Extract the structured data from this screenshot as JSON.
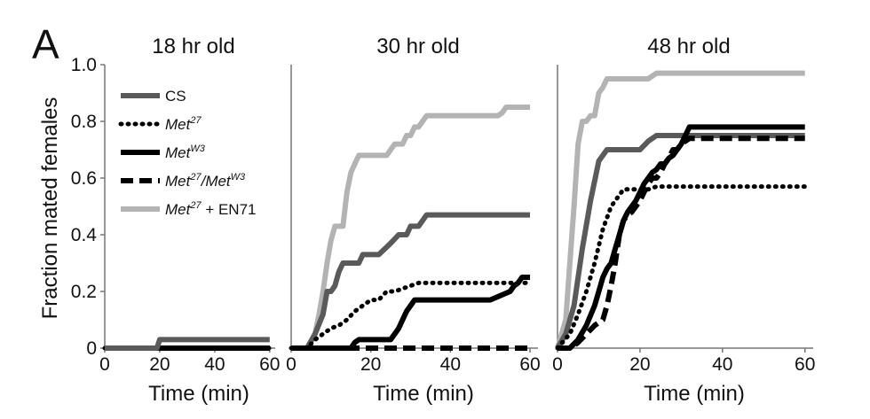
{
  "figure": {
    "panel_letter": "A",
    "ylabel": "Fraction mated females",
    "colors": {
      "CS": "#5a5a5a",
      "Met27": "#000000",
      "MetW3": "#000000",
      "Met27/MetW3": "#000000",
      "Met27 + EN71": "#b3b3b3",
      "axis": "#777777"
    }
  },
  "legend": [
    {
      "key": "CS",
      "parts": [
        {
          "t": "CS",
          "style": "plain"
        }
      ],
      "line": "solid",
      "color": "#5a5a5a"
    },
    {
      "key": "Met27",
      "parts": [
        {
          "t": "Met",
          "style": "italic"
        },
        {
          "t": "27",
          "style": "sup"
        }
      ],
      "line": "dotted",
      "color": "#000000"
    },
    {
      "key": "MetW3",
      "parts": [
        {
          "t": "Met",
          "style": "italic"
        },
        {
          "t": "W3",
          "style": "sup"
        }
      ],
      "line": "solid",
      "color": "#000000"
    },
    {
      "key": "Met27/MetW3",
      "parts": [
        {
          "t": "Met",
          "style": "italic"
        },
        {
          "t": "27",
          "style": "sup"
        },
        {
          "t": "/Met",
          "style": "italic"
        },
        {
          "t": "W3",
          "style": "sup"
        }
      ],
      "line": "dashed",
      "color": "#000000"
    },
    {
      "key": "Met27 + EN71",
      "parts": [
        {
          "t": "Met",
          "style": "italic"
        },
        {
          "t": "27",
          "style": "sup"
        },
        {
          "t": " + EN71",
          "style": "plain"
        }
      ],
      "line": "solid",
      "color": "#b3b3b3"
    }
  ],
  "chart_data": [
    {
      "type": "line",
      "title": "18 hr old",
      "xlabel": "Time (min)",
      "ylabel": "Fraction mated females",
      "xlim": [
        0,
        62
      ],
      "ylim": [
        0,
        1.0
      ],
      "xticks": [
        "0",
        "20",
        "40",
        "60"
      ],
      "yticks": [
        "0",
        "0.2",
        "0.4",
        "0.6",
        "0.8",
        "1.0"
      ],
      "series": [
        {
          "name": "Met27",
          "style": "dotted",
          "x": [
            0,
            60
          ],
          "y": [
            0,
            0
          ]
        },
        {
          "name": "MetW3",
          "style": "solid-black",
          "x": [
            0,
            60
          ],
          "y": [
            0,
            0
          ]
        },
        {
          "name": "Met27/MetW3",
          "style": "dashed",
          "x": [
            0,
            60
          ],
          "y": [
            0,
            0
          ]
        },
        {
          "name": "CS",
          "style": "solid-darkgray",
          "x": [
            0,
            19,
            20,
            60
          ],
          "y": [
            0,
            0,
            0.03,
            0.03
          ]
        }
      ]
    },
    {
      "type": "line",
      "title": "30 hr old",
      "xlabel": "Time (min)",
      "ylabel": "",
      "xlim": [
        0,
        62
      ],
      "ylim": [
        0,
        1.0
      ],
      "xticks": [
        "0",
        "20",
        "40",
        "60"
      ],
      "yticks": [],
      "series": [
        {
          "name": "Met27 + EN71",
          "style": "solid-lightgray",
          "x": [
            0,
            4,
            6,
            7,
            8,
            9,
            10,
            11,
            12,
            13,
            14,
            15,
            16,
            17,
            18,
            19,
            20,
            22,
            24,
            25,
            26,
            28,
            29,
            30,
            31,
            32,
            33,
            34,
            35,
            36,
            37,
            38,
            40,
            45,
            50,
            52,
            53,
            54,
            55,
            60
          ],
          "y": [
            0,
            0,
            0.05,
            0.12,
            0.2,
            0.3,
            0.38,
            0.43,
            0.43,
            0.43,
            0.55,
            0.62,
            0.65,
            0.68,
            0.68,
            0.68,
            0.68,
            0.68,
            0.68,
            0.7,
            0.72,
            0.72,
            0.75,
            0.75,
            0.78,
            0.78,
            0.8,
            0.82,
            0.82,
            0.82,
            0.82,
            0.82,
            0.82,
            0.82,
            0.82,
            0.82,
            0.83,
            0.85,
            0.85,
            0.85
          ]
        },
        {
          "name": "CS",
          "style": "solid-darkgray",
          "x": [
            0,
            4,
            6,
            8,
            9,
            10,
            11,
            12,
            13,
            14,
            15,
            16,
            17,
            18,
            20,
            22,
            25,
            27,
            29,
            30,
            32,
            33,
            34,
            35,
            40,
            60
          ],
          "y": [
            0,
            0,
            0.05,
            0.12,
            0.2,
            0.2,
            0.22,
            0.27,
            0.3,
            0.3,
            0.3,
            0.3,
            0.3,
            0.33,
            0.33,
            0.33,
            0.37,
            0.4,
            0.4,
            0.43,
            0.43,
            0.45,
            0.47,
            0.47,
            0.47,
            0.47
          ]
        },
        {
          "name": "Met27",
          "style": "dotted",
          "x": [
            0,
            4,
            6,
            8,
            10,
            12,
            14,
            16,
            18,
            20,
            22,
            24,
            26,
            28,
            30,
            32,
            34,
            36,
            40,
            50,
            60
          ],
          "y": [
            0,
            0,
            0.03,
            0.05,
            0.07,
            0.08,
            0.1,
            0.13,
            0.15,
            0.17,
            0.17,
            0.2,
            0.2,
            0.21,
            0.22,
            0.23,
            0.23,
            0.23,
            0.23,
            0.23,
            0.23
          ]
        },
        {
          "name": "MetW3",
          "style": "solid-black",
          "x": [
            0,
            15,
            16,
            17,
            18,
            20,
            24,
            25,
            26,
            27,
            28,
            29,
            30,
            31,
            32,
            33,
            34,
            35,
            40,
            45,
            50,
            55,
            56,
            57,
            58,
            59,
            60
          ],
          "y": [
            0,
            0,
            0.02,
            0.03,
            0.03,
            0.03,
            0.03,
            0.03,
            0.05,
            0.07,
            0.1,
            0.13,
            0.15,
            0.17,
            0.17,
            0.17,
            0.17,
            0.17,
            0.17,
            0.17,
            0.17,
            0.2,
            0.22,
            0.23,
            0.25,
            0.25,
            0.25
          ]
        },
        {
          "name": "Met27/MetW3",
          "style": "dashed",
          "x": [
            0,
            60
          ],
          "y": [
            0,
            0
          ]
        }
      ]
    },
    {
      "type": "line",
      "title": "48 hr old",
      "xlabel": "Time (min)",
      "ylabel": "",
      "xlim": [
        0,
        62
      ],
      "ylim": [
        0,
        1.0
      ],
      "xticks": [
        "0",
        "20",
        "40",
        "60"
      ],
      "yticks": [],
      "series": [
        {
          "name": "Met27 + EN71",
          "style": "solid-lightgray",
          "x": [
            0,
            2,
            3,
            4,
            5,
            6,
            7,
            8,
            9,
            10,
            11,
            12,
            13,
            14,
            15,
            16,
            18,
            20,
            22,
            24,
            30,
            40,
            50,
            60
          ],
          "y": [
            0,
            0.1,
            0.3,
            0.5,
            0.72,
            0.8,
            0.8,
            0.82,
            0.82,
            0.9,
            0.92,
            0.95,
            0.95,
            0.95,
            0.95,
            0.95,
            0.95,
            0.95,
            0.95,
            0.97,
            0.97,
            0.97,
            0.97,
            0.97
          ]
        },
        {
          "name": "CS",
          "style": "solid-darkgray",
          "x": [
            0,
            2,
            4,
            6,
            8,
            10,
            12,
            14,
            16,
            18,
            20,
            22,
            24,
            26,
            28,
            30,
            35,
            40,
            50,
            60
          ],
          "y": [
            0,
            0.05,
            0.15,
            0.35,
            0.52,
            0.66,
            0.7,
            0.7,
            0.7,
            0.7,
            0.7,
            0.73,
            0.75,
            0.75,
            0.75,
            0.75,
            0.75,
            0.75,
            0.75,
            0.75
          ]
        },
        {
          "name": "Met27",
          "style": "dotted",
          "x": [
            0,
            3,
            5,
            7,
            9,
            11,
            13,
            15,
            16,
            18,
            20,
            22,
            24,
            30,
            40,
            50,
            60
          ],
          "y": [
            0,
            0.05,
            0.12,
            0.2,
            0.3,
            0.42,
            0.5,
            0.54,
            0.56,
            0.56,
            0.56,
            0.56,
            0.57,
            0.57,
            0.57,
            0.57,
            0.57
          ]
        },
        {
          "name": "MetW3",
          "style": "solid-black",
          "x": [
            0,
            3,
            5,
            7,
            9,
            10,
            11,
            12,
            13,
            14,
            15,
            16,
            17,
            18,
            19,
            20,
            21,
            22,
            23,
            24,
            25,
            26,
            27,
            28,
            29,
            30,
            31,
            32,
            33,
            34,
            35,
            40,
            50,
            60
          ],
          "y": [
            0,
            0,
            0.03,
            0.08,
            0.15,
            0.2,
            0.25,
            0.28,
            0.3,
            0.35,
            0.4,
            0.45,
            0.48,
            0.5,
            0.52,
            0.55,
            0.58,
            0.6,
            0.62,
            0.63,
            0.65,
            0.65,
            0.67,
            0.68,
            0.7,
            0.72,
            0.75,
            0.78,
            0.78,
            0.78,
            0.78,
            0.78,
            0.78,
            0.78
          ]
        },
        {
          "name": "Met27/MetW3",
          "style": "dashed",
          "x": [
            0,
            3,
            5,
            7,
            9,
            11,
            12,
            13,
            14,
            15,
            16,
            17,
            18,
            19,
            20,
            21,
            22,
            23,
            24,
            25,
            26,
            27,
            28,
            29,
            30,
            31,
            32,
            33,
            35,
            40,
            50,
            60
          ],
          "y": [
            0,
            0,
            0.02,
            0.05,
            0.08,
            0.1,
            0.15,
            0.22,
            0.3,
            0.4,
            0.45,
            0.47,
            0.48,
            0.5,
            0.52,
            0.55,
            0.58,
            0.6,
            0.6,
            0.62,
            0.65,
            0.67,
            0.7,
            0.7,
            0.72,
            0.73,
            0.74,
            0.74,
            0.74,
            0.74,
            0.74,
            0.74
          ]
        }
      ]
    }
  ]
}
